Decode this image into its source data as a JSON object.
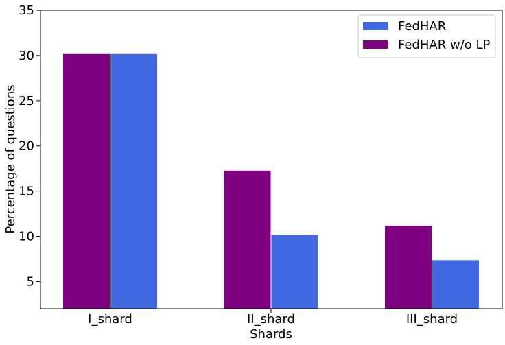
{
  "chart_data": {
    "type": "bar",
    "title": "",
    "xlabel": "Shards",
    "ylabel": "Percentage of questions",
    "categories": [
      "I_shard",
      "II_shard",
      "III_shard"
    ],
    "series": [
      {
        "name": "FedHAR w/o LP",
        "color": "#800080",
        "values": [
          30.2,
          17.3,
          11.2
        ]
      },
      {
        "name": "FedHAR",
        "color": "#4169E1",
        "values": [
          30.2,
          10.2,
          7.4
        ]
      }
    ],
    "ylim": [
      2,
      35
    ],
    "yticks": [
      5,
      10,
      15,
      20,
      25,
      30,
      35
    ],
    "legend": {
      "placement": "top-right",
      "entries": [
        {
          "label": "FedHAR",
          "color": "#4169E1"
        },
        {
          "label": "FedHAR w/o LP",
          "color": "#800080"
        }
      ]
    },
    "grid": false
  }
}
